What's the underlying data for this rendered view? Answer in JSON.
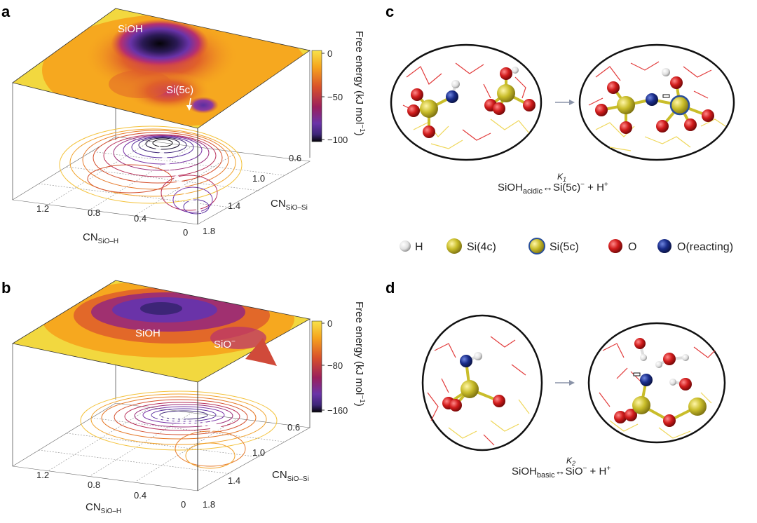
{
  "panels": {
    "a": "a",
    "b": "b",
    "c": "c",
    "d": "d"
  },
  "panel_a": {
    "labels": [
      "SiOH",
      "Si(5c)"
    ],
    "colorbar_title": "Free energy (kJ mol",
    "colorbar_title_sup": "−1",
    "colorbar_title_end": ")",
    "colorbar_ticks": [
      "0",
      "−50",
      "−100"
    ],
    "x_axis": "CN",
    "x_axis_sub": "SiO–H",
    "x_ticks": [
      "1.2",
      "0.8",
      "0.4",
      "0"
    ],
    "y_axis": "CN",
    "y_axis_sub": "SiO–Si",
    "y_ticks": [
      "0.6",
      "1.0",
      "1.4",
      "1.8"
    ]
  },
  "panel_b": {
    "labels": [
      "SiOH",
      "SiO",
      "−"
    ],
    "colorbar_title": "Free energy (kJ mol",
    "colorbar_title_sup": "−1",
    "colorbar_title_end": ")",
    "colorbar_ticks": [
      "0",
      "−80",
      "−160"
    ],
    "x_axis": "CN",
    "x_axis_sub": "SiO–H",
    "x_ticks": [
      "1.2",
      "0.8",
      "0.4",
      "0"
    ],
    "y_axis": "CN",
    "y_axis_sub": "SiO–Si",
    "y_ticks": [
      "0.6",
      "1.0",
      "1.4",
      "1.8"
    ]
  },
  "panel_c": {
    "eq_lhs": "SiOH",
    "eq_lhs_sub": "acidic",
    "eq_k": "K",
    "eq_k_sub": "1",
    "eq_arrow": "↔",
    "eq_rhs1": "Si(5c)",
    "eq_rhs1_sup": "−",
    "eq_rhs2": " + H",
    "eq_rhs2_sup": "+"
  },
  "panel_d": {
    "eq_lhs": "SiOH",
    "eq_lhs_sub": "basic",
    "eq_k": "K",
    "eq_k_sub": "2",
    "eq_arrow": "↔",
    "eq_rhs1": "SiO",
    "eq_rhs1_sup": "−",
    "eq_rhs2": " + H",
    "eq_rhs2_sup": "+"
  },
  "legend": [
    "H",
    "Si(4c)",
    "Si(5c)",
    "O",
    "O(reacting)"
  ],
  "colors": {
    "H": "#e8e8e8",
    "Si": "#c9bd2a",
    "O": "#d11c1c",
    "O_reacting": "#1a2d8a",
    "Si5c_ring": "#2a4f9a",
    "bond_red": "#e23b3b",
    "bond_yellow": "#efd75a"
  }
}
